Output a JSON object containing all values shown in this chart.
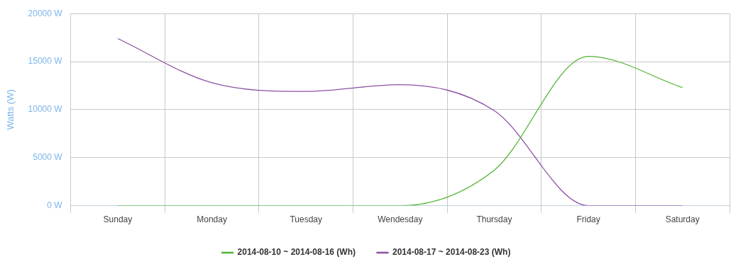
{
  "chart_data": {
    "type": "line",
    "ylabel": "Watts (W)",
    "categories": [
      "Sunday",
      "Monday",
      "Tuesday",
      "Wendesday",
      "Thursday",
      "Friday",
      "Saturday"
    ],
    "series": [
      {
        "name": "2014-08-10 ~ 2014-08-16 (Wh)",
        "color": "#50b432",
        "values": [
          0,
          0,
          0,
          0,
          3700,
          15550,
          12300
        ]
      },
      {
        "name": "2014-08-17 ~ 2014-08-23 (Wh)",
        "color": "#8d4fa5",
        "values": [
          17400,
          12800,
          11900,
          12600,
          9900,
          0,
          0
        ]
      }
    ],
    "ylim": [
      0,
      20000
    ],
    "yticks": [
      {
        "value": 0,
        "label": "0 W"
      },
      {
        "value": 5000,
        "label": "5000 W"
      },
      {
        "value": 10000,
        "label": "10000 W"
      },
      {
        "value": 15000,
        "label": "15000 W"
      },
      {
        "value": 20000,
        "label": "20000 W"
      }
    ],
    "grid": true,
    "legend": "bottom",
    "marker": "none",
    "line_style": "solid"
  }
}
